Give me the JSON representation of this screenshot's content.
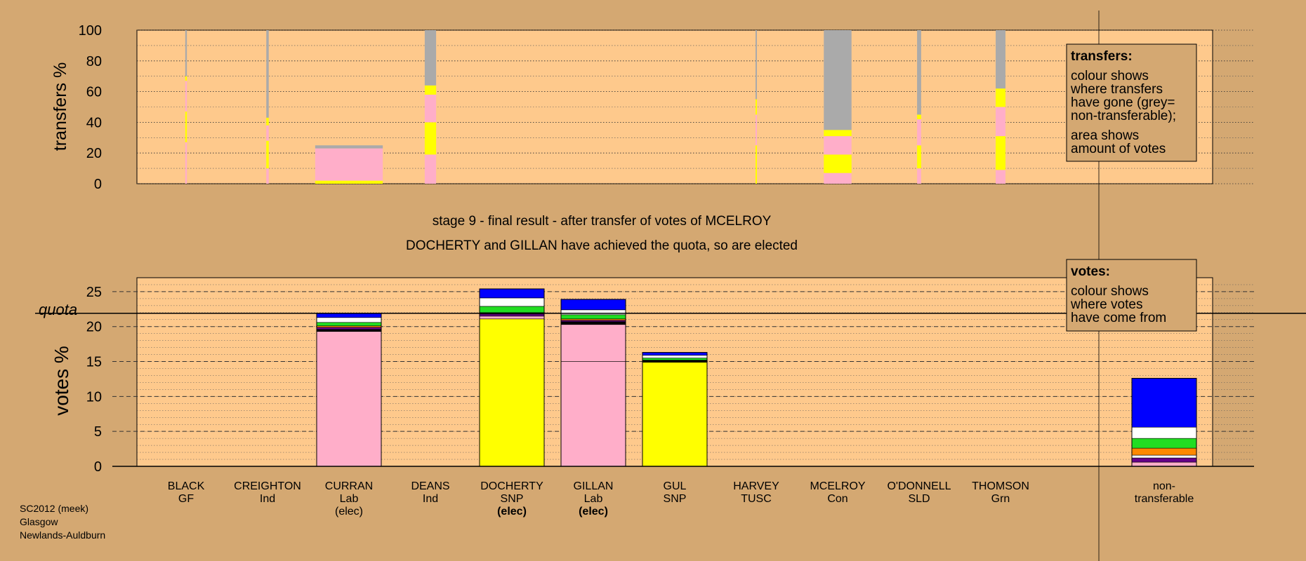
{
  "meta": {
    "lines": [
      "SC2012 (meek)",
      "Glasgow",
      "Newlands-Auldburn"
    ]
  },
  "headline": {
    "stage": "stage 9 - final result - after transfer of votes of MCELROY",
    "result": "DOCHERTY and GILLAN have achieved the quota, so are elected"
  },
  "colors": {
    "background": "#d4a872",
    "plot_area": "#fec98c",
    "pink": "#ffaec9",
    "yellow": "#ffff00",
    "grey": "#aaaaaa",
    "white": "#ffffff",
    "blue": "#0000ff",
    "green": "#22dd22",
    "orange": "#ff8800",
    "purple": "#660088",
    "black": "#000000"
  },
  "legend_transfers": {
    "title": "transfers:",
    "lines1": [
      "colour shows",
      "where transfers",
      "have gone (grey=",
      "non-transferable);"
    ],
    "lines2": [
      "area shows",
      "amount of votes"
    ]
  },
  "legend_votes": {
    "title": "votes:",
    "lines": [
      "colour shows",
      "where votes",
      "have come from"
    ]
  },
  "chart_data": [
    {
      "type": "bar",
      "name": "transfers",
      "ylabel": "transfers %",
      "ylim": [
        0,
        100
      ],
      "yticks": [
        0,
        20,
        40,
        60,
        80,
        100
      ],
      "grid": true,
      "note": "stacked segments: destination colour, from % to %; width = amount of votes",
      "columns": [
        {
          "candidate": "BLACK",
          "width": 0.2,
          "segments": [
            [
              "pink",
              0,
              27
            ],
            [
              "yellow",
              27,
              47
            ],
            [
              "pink",
              47,
              67
            ],
            [
              "yellow",
              67,
              70
            ],
            [
              "grey",
              70,
              100
            ]
          ]
        },
        {
          "candidate": "CREIGHTON",
          "width": 0.3,
          "segments": [
            [
              "pink",
              0,
              10
            ],
            [
              "yellow",
              10,
              28
            ],
            [
              "pink",
              28,
              38
            ],
            [
              "yellow",
              38,
              43
            ],
            [
              "grey",
              43,
              100
            ]
          ]
        },
        {
          "candidate": "CURRAN",
          "width": 8.3,
          "segments": [
            [
              "yellow",
              0,
              2
            ],
            [
              "pink",
              2,
              23
            ],
            [
              "grey",
              23,
              25
            ]
          ]
        },
        {
          "candidate": "DEANS",
          "width": 1.4,
          "segments": [
            [
              "pink",
              0,
              19
            ],
            [
              "yellow",
              19,
              40
            ],
            [
              "pink",
              40,
              58
            ],
            [
              "yellow",
              58,
              64
            ],
            [
              "grey",
              64,
              100
            ]
          ]
        },
        {
          "candidate": "HARVEY",
          "width": 0.15,
          "segments": [
            [
              "yellow",
              0,
              25
            ],
            [
              "pink",
              25,
              45
            ],
            [
              "yellow",
              45,
              55
            ],
            [
              "grey",
              55,
              100
            ]
          ]
        },
        {
          "candidate": "MCELROY",
          "width": 3.4,
          "segments": [
            [
              "pink",
              0,
              7
            ],
            [
              "yellow",
              7,
              19
            ],
            [
              "pink",
              19,
              31
            ],
            [
              "yellow",
              31,
              35
            ],
            [
              "grey",
              35,
              100
            ]
          ]
        },
        {
          "candidate": "O'DONNELL",
          "width": 0.5,
          "segments": [
            [
              "pink",
              0,
              10
            ],
            [
              "yellow",
              10,
              25
            ],
            [
              "pink",
              25,
              42
            ],
            [
              "yellow",
              42,
              45
            ],
            [
              "grey",
              45,
              100
            ]
          ]
        },
        {
          "candidate": "THOMSON",
          "width": 1.2,
          "segments": [
            [
              "pink",
              0,
              9
            ],
            [
              "yellow",
              9,
              31
            ],
            [
              "pink",
              31,
              50
            ],
            [
              "yellow",
              50,
              62
            ],
            [
              "grey",
              62,
              100
            ]
          ]
        }
      ]
    },
    {
      "type": "bar",
      "name": "votes",
      "ylabel": "votes %",
      "ylim": [
        0,
        27
      ],
      "yticks": [
        0,
        5,
        10,
        15,
        20,
        25
      ],
      "quota": 21.9,
      "quota_label": "quota",
      "grid": true,
      "candidates": [
        {
          "name": "BLACK",
          "party": "GF",
          "elected": false,
          "segments": []
        },
        {
          "name": "CREIGHTON",
          "party": "Ind",
          "elected": false,
          "segments": []
        },
        {
          "name": "DEANS",
          "party": "Ind",
          "elected": false,
          "segments": []
        },
        {
          "name": "CURRAN",
          "party": "Lab",
          "elected": true,
          "segments": [
            [
              "pink",
              0,
              19.3
            ],
            [
              "black",
              19.3,
              19.6
            ],
            [
              "purple",
              19.6,
              19.9
            ],
            [
              "orange",
              19.9,
              20.1
            ],
            [
              "green",
              20.1,
              20.6
            ],
            [
              "white",
              20.6,
              21.3
            ],
            [
              "blue",
              21.3,
              21.9
            ]
          ]
        },
        {
          "name": "DOCHERTY",
          "party": "SNP",
          "elected": true,
          "segments": [
            [
              "yellow",
              0,
              21.1
            ],
            [
              "pink",
              21.1,
              21.5
            ],
            [
              "purple",
              21.5,
              21.8
            ],
            [
              "orange",
              21.8,
              22.0
            ],
            [
              "green",
              22.0,
              22.9
            ],
            [
              "white",
              22.9,
              24.1
            ],
            [
              "blue",
              24.1,
              25.4
            ]
          ]
        },
        {
          "name": "GILLAN",
          "party": "Lab",
          "elected": true,
          "segments": [
            [
              "pink",
              0,
              15.0
            ],
            [
              "pink",
              15.0,
              20.3
            ],
            [
              "black",
              20.3,
              20.7
            ],
            [
              "purple",
              20.7,
              20.9
            ],
            [
              "orange",
              20.9,
              21.1
            ],
            [
              "green",
              21.1,
              21.7
            ],
            [
              "white",
              21.7,
              22.4
            ],
            [
              "blue",
              22.4,
              23.9
            ]
          ]
        },
        {
          "name": "GUL",
          "party": "SNP",
          "elected": false,
          "segments": [
            [
              "yellow",
              0,
              14.9
            ],
            [
              "black",
              14.9,
              15.2
            ],
            [
              "green",
              15.2,
              15.5
            ],
            [
              "white",
              15.5,
              15.9
            ],
            [
              "blue",
              15.9,
              16.3
            ]
          ]
        },
        {
          "name": "HARVEY",
          "party": "TUSC",
          "elected": false,
          "segments": []
        },
        {
          "name": "MCELROY",
          "party": "Con",
          "elected": false,
          "segments": []
        },
        {
          "name": "O'DONNELL",
          "party": "SLD",
          "elected": false,
          "segments": []
        },
        {
          "name": "THOMSON",
          "party": "Grn",
          "elected": false,
          "segments": []
        }
      ],
      "non_transferable": {
        "label": [
          "non-",
          "transferable"
        ],
        "segments": [
          [
            "pink",
            0,
            0.6
          ],
          [
            "purple",
            0.6,
            1.2
          ],
          [
            "white",
            1.2,
            1.6
          ],
          [
            "orange",
            1.6,
            2.6
          ],
          [
            "green",
            2.6,
            4.0
          ],
          [
            "white",
            4.0,
            5.6
          ],
          [
            "blue",
            5.6,
            12.6
          ]
        ]
      }
    }
  ],
  "elected_label": "(elec)"
}
